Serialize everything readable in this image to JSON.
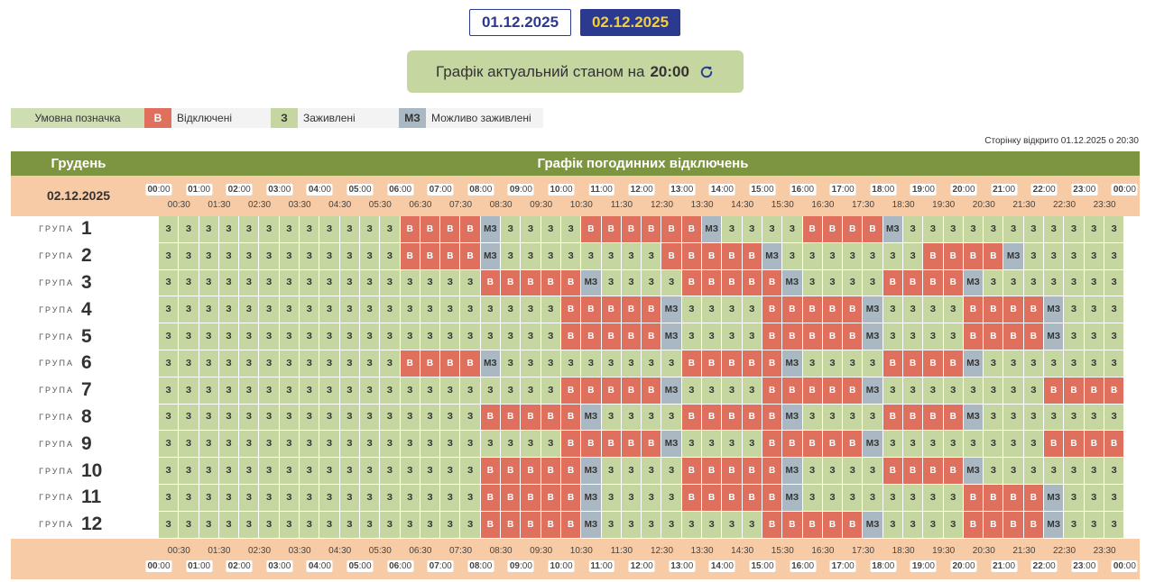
{
  "dates": [
    "01.12.2025",
    "02.12.2025"
  ],
  "status": {
    "text": "Графік актуальний станом на",
    "time": "20:00"
  },
  "legend": {
    "title": "Умовна позначка",
    "items": [
      {
        "code": "В",
        "label": "Відключені",
        "color": "#de705d"
      },
      {
        "code": "З",
        "label": "Заживлені",
        "color": "#c5d6a0"
      },
      {
        "code": "МЗ",
        "label": "Можливо заживлені",
        "color": "#a9b8c2"
      }
    ]
  },
  "page_opened": "Сторінку відкрито 01.12.2025 о 20:30",
  "grid": {
    "month": "Грудень",
    "title": "Графік погодинних відключень",
    "date": "02.12.2025",
    "group_word": "ГРУПА",
    "hours": [
      "00",
      "01",
      "02",
      "03",
      "04",
      "05",
      "06",
      "07",
      "08",
      "09",
      "10",
      "11",
      "12",
      "13",
      "14",
      "15",
      "16",
      "17",
      "18",
      "19",
      "20",
      "21",
      "22",
      "23",
      "00"
    ],
    "halves": [
      "00:30",
      "01:30",
      "02:30",
      "03:30",
      "04:30",
      "05:30",
      "06:30",
      "07:30",
      "08:30",
      "09:30",
      "10:30",
      "11:30",
      "12:30",
      "13:30",
      "14:30",
      "15:30",
      "16:30",
      "17:30",
      "18:30",
      "19:30",
      "20:30",
      "21:30",
      "22:30",
      "23:30"
    ],
    "cell_text": {
      "Z": "З",
      "V": "В",
      "M": "МЗ"
    },
    "groups": [
      {
        "num": "1",
        "slots": "ZZZZZZZZZZZZVVVVMZZZZVVVVVVMZZZZVVVVMZZZZZZZZZZZ"
      },
      {
        "num": "2",
        "slots": "ZZZZZZZZZZZZVVVVMZZZZZZZZVVVVVMZZZZZZZVVVVMZZZZZ"
      },
      {
        "num": "3",
        "slots": "ZZZZZZZZZZZZZZZZVVVVVMZZZZVVVVVMZZZZVVVVMZZZZZZZ"
      },
      {
        "num": "4",
        "slots": "ZZZZZZZZZZZZZZZZZZZZVVVVVMZZZZVVVVVMZZZZVVVVMZZZ"
      },
      {
        "num": "5",
        "slots": "ZZZZZZZZZZZZZZZZZZZZVVVVVMZZZZVVVVVMZZZZVVVVMZZZ"
      },
      {
        "num": "6",
        "slots": "ZZZZZZZZZZZZVVVVMZZZZZZZZZVVVVVMZZZZVVVVMZZZZZZZ"
      },
      {
        "num": "7",
        "slots": "ZZZZZZZZZZZZZZZZZZZZVVVVVMZZZZVVVVVMZZZZZZZZVVVV"
      },
      {
        "num": "8",
        "slots": "ZZZZZZZZZZZZZZZZVVVVVMZZZZVVVVVMZZZZVVVVMZZZZZZZ"
      },
      {
        "num": "9",
        "slots": "ZZZZZZZZZZZZZZZZZZZZVVVVVMZZZZVVVVVMZZZZZZZZVVVV"
      },
      {
        "num": "10",
        "slots": "ZZZZZZZZZZZZZZZZVVVVVMZZZZVVVVVMZZZZVVVVMZZZZZZZ"
      },
      {
        "num": "11",
        "slots": "ZZZZZZZZZZZZZZZZVVVVVMZZZZVVVVVMZZZZZZZZVVVVMZZZ"
      },
      {
        "num": "12",
        "slots": "ZZZZZZZZZZZZZZZZVVVVVMZZZZZZZZVVVVVMZZZZVVVVMZZZ"
      }
    ]
  }
}
